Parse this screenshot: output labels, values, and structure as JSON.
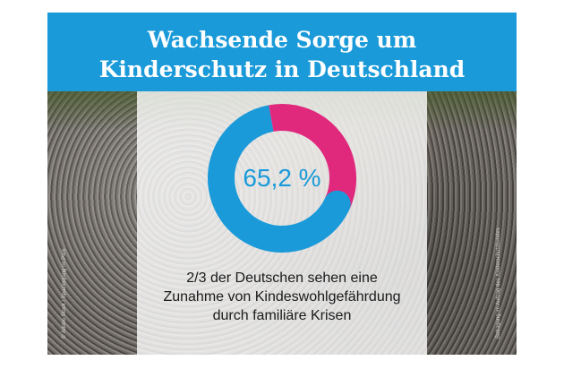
{
  "title_lines": [
    "Wachsende Sorge um",
    "Kinderschutz in Deutschland"
  ],
  "value_label": "65,2 %",
  "caption_lines": [
    "2/3 der Deutschen sehen eine",
    "Zunahme von Kindeswohlgefährdung",
    "durch familiäre Krisen"
  ],
  "credit_left": "© Adobe Stock / Spaziergang im Park",
  "credit_right": "Befragung im Auftrag des Kinderschutzbundes",
  "colors": {
    "brand_blue": "#1a9ad9",
    "accent_magenta": "#e0287d"
  },
  "chart_data": {
    "type": "pie",
    "style": "donut",
    "slices": [
      {
        "value": 65.2,
        "color": "#1a9ad9"
      },
      {
        "value": 34.8,
        "color": "#e0287d"
      }
    ]
  }
}
